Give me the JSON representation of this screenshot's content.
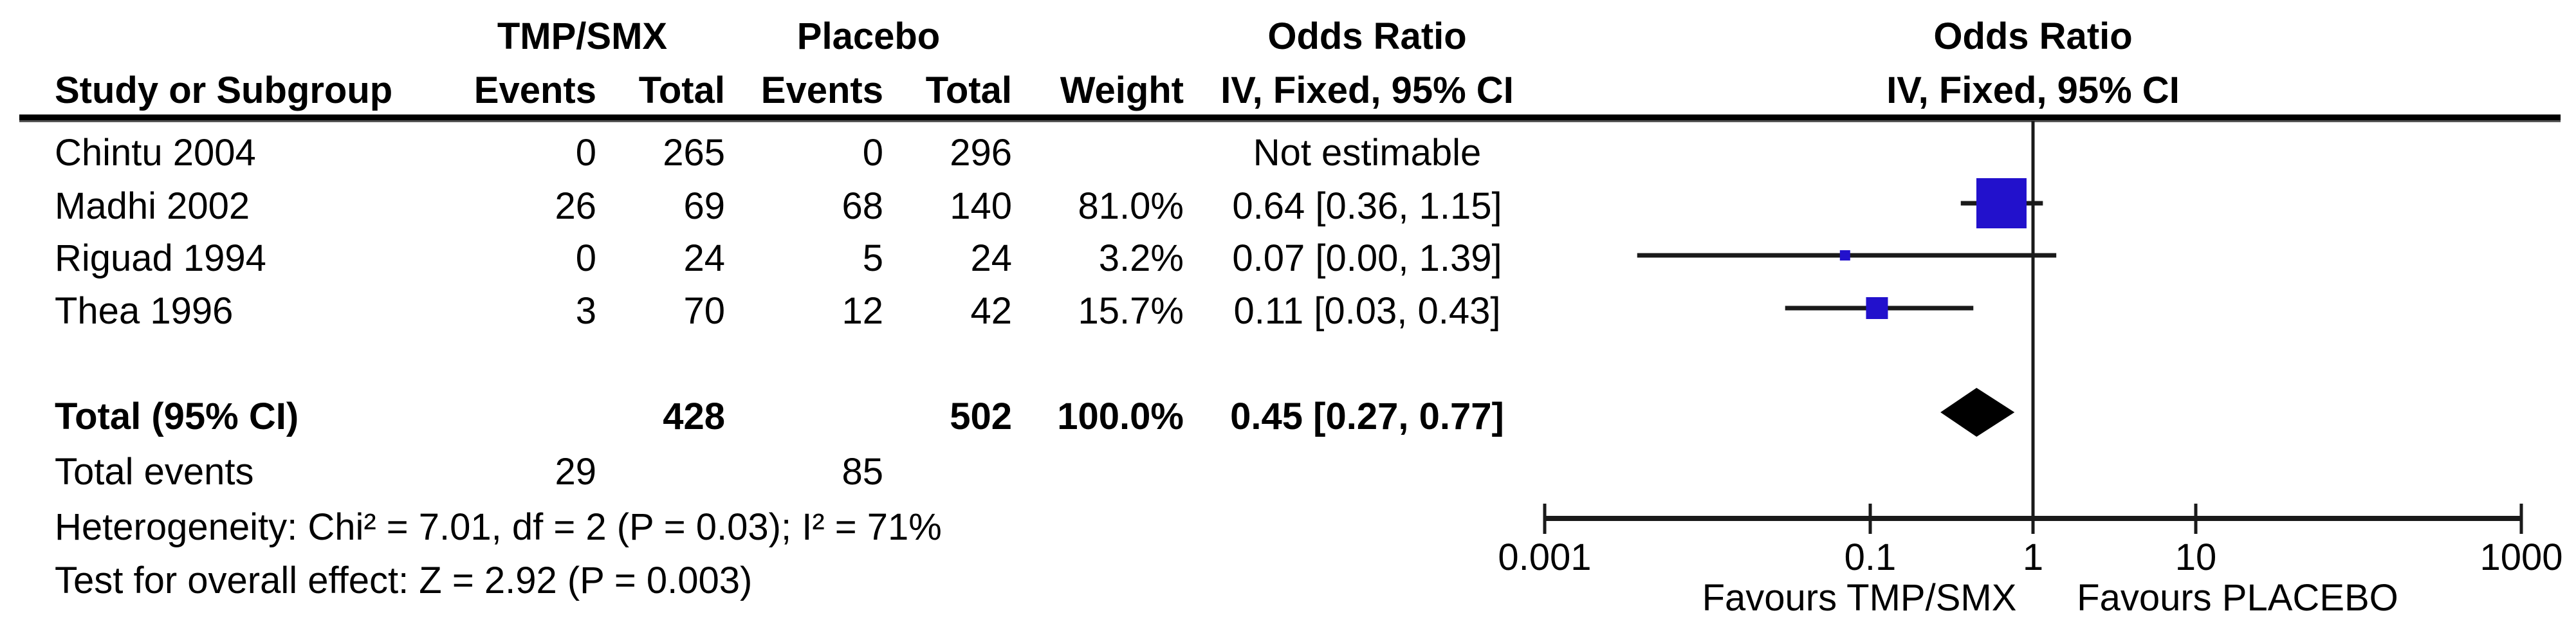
{
  "table": {
    "group1_header": "TMP/SMX",
    "group2_header": "Placebo",
    "or_header": "Odds Ratio",
    "method_header": "IV, Fixed, 95% CI",
    "plot_or_header": "Odds Ratio",
    "plot_method_header": "IV, Fixed, 95% CI",
    "col_study": "Study or Subgroup",
    "col_events": "Events",
    "col_total": "Total",
    "col_weight": "Weight",
    "rows": [
      {
        "study": "Chintu 2004",
        "events1": "0",
        "total1": "265",
        "events2": "0",
        "total2": "296",
        "weight": "",
        "ci_text": "Not estimable"
      },
      {
        "study": "Madhi 2002",
        "events1": "26",
        "total1": "69",
        "events2": "68",
        "total2": "140",
        "weight": "81.0%",
        "ci_text": "0.64 [0.36, 1.15]"
      },
      {
        "study": "Riguad 1994",
        "events1": "0",
        "total1": "24",
        "events2": "5",
        "total2": "24",
        "weight": "3.2%",
        "ci_text": "0.07 [0.00, 1.39]"
      },
      {
        "study": "Thea 1996",
        "events1": "3",
        "total1": "70",
        "events2": "12",
        "total2": "42",
        "weight": "15.7%",
        "ci_text": "0.11 [0.03, 0.43]"
      }
    ],
    "total_label": "Total (95% CI)",
    "total_total1": "428",
    "total_total2": "502",
    "total_weight": "100.0%",
    "total_ci_text": "0.45 [0.27, 0.77]",
    "total_events_label": "Total events",
    "total_events1": "29",
    "total_events2": "85",
    "heterogeneity_text": "Heterogeneity: Chi² = 7.01, df = 2 (P = 0.03); I² = 71%",
    "overall_effect_text": "Test for overall effect: Z = 2.92 (P = 0.003)"
  },
  "chart_data": {
    "type": "forest",
    "x_scale": "log10",
    "axis_range": [
      0.001,
      1000
    ],
    "axis_ticks": [
      0.001,
      0.1,
      1,
      10,
      1000
    ],
    "tick_labels": [
      "0.001",
      "0.1",
      "1",
      "10",
      "1000"
    ],
    "null_line": 1,
    "favours_left": "Favours TMP/SMX",
    "favours_right": "Favours PLACEBO",
    "studies": [
      {
        "name": "Chintu 2004",
        "estimable": false
      },
      {
        "name": "Madhi 2002",
        "estimable": true,
        "or": 0.64,
        "ci_low": 0.36,
        "ci_high": 1.15,
        "weight_pct": 81.0
      },
      {
        "name": "Riguad 1994",
        "estimable": true,
        "or": 0.07,
        "ci_low": 0.0037,
        "ci_high": 1.39,
        "weight_pct": 3.2
      },
      {
        "name": "Thea 1996",
        "estimable": true,
        "or": 0.11,
        "ci_low": 0.03,
        "ci_high": 0.43,
        "weight_pct": 15.7
      }
    ],
    "total": {
      "or": 0.45,
      "ci_low": 0.27,
      "ci_high": 0.77
    },
    "marker_color": "#2211cc",
    "line_color": "#1a1a1a",
    "diamond_color": "#000000"
  }
}
